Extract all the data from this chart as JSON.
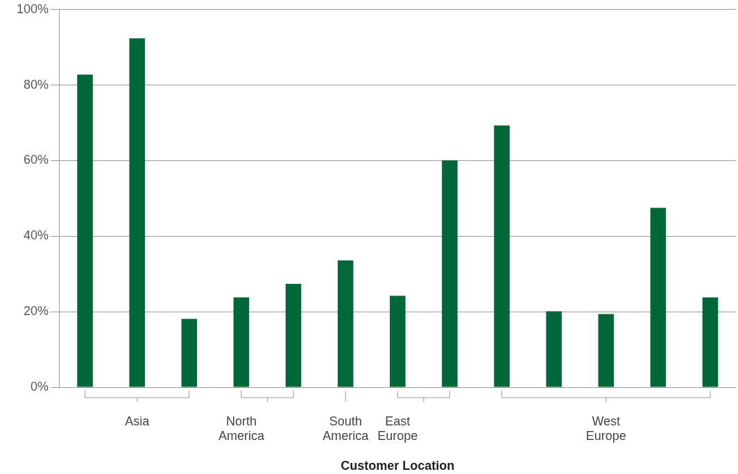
{
  "chart_data": {
    "type": "bar",
    "xlabel": "Customer Location",
    "categories": [
      null,
      "Asia",
      null,
      "North America",
      null,
      "South America",
      "East Europe",
      null,
      null,
      null,
      "West Europe",
      null,
      null
    ],
    "values": [
      82.8,
      92.4,
      18.1,
      23.8,
      27.4,
      33.6,
      24.2,
      60.1,
      69.3,
      20.1,
      19.4,
      47.5,
      23.8
    ],
    "color": "#006838",
    "ylim": [
      0,
      100
    ],
    "yticks": [
      {
        "value": 0,
        "label": "0%"
      },
      {
        "value": 20,
        "label": "20%"
      },
      {
        "value": 40,
        "label": "40%"
      },
      {
        "value": 60,
        "label": "60%"
      },
      {
        "value": 80,
        "label": "80%"
      },
      {
        "value": 100,
        "label": "100%"
      }
    ],
    "grid": "y",
    "legend": false
  }
}
